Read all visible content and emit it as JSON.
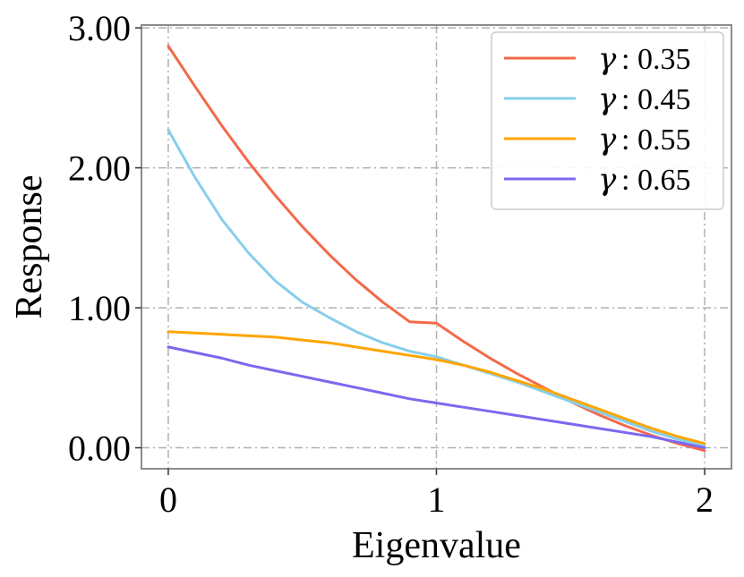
{
  "chart_data": {
    "type": "line",
    "xlabel": "Eigenvalue",
    "ylabel": "Response",
    "xlim": [
      -0.1,
      2.1
    ],
    "ylim": [
      -0.15,
      3.02
    ],
    "xticks": [
      0,
      1,
      2
    ],
    "xtick_labels": [
      "0",
      "1",
      "2"
    ],
    "yticks": [
      0,
      1,
      2,
      3
    ],
    "ytick_labels": [
      "0.00",
      "1.00",
      "2.00",
      "3.00"
    ],
    "grid": true,
    "legend_position": "top-right",
    "x": [
      0,
      0.1,
      0.2,
      0.3,
      0.4,
      0.5,
      0.6,
      0.7,
      0.8,
      0.9,
      1.0,
      1.1,
      1.2,
      1.3,
      1.4,
      1.5,
      1.6,
      1.7,
      1.8,
      1.9,
      2.0
    ],
    "series": [
      {
        "name": "γ : 0.35",
        "gamma_symbol": "γ",
        "label_value": ": 0.35",
        "color": "#f4694a",
        "values": [
          2.87,
          2.58,
          2.3,
          2.04,
          1.8,
          1.58,
          1.38,
          1.2,
          1.04,
          0.9,
          0.89,
          0.76,
          0.64,
          0.53,
          0.43,
          0.33,
          0.24,
          0.16,
          0.09,
          0.03,
          -0.02
        ]
      },
      {
        "name": "γ : 0.45",
        "gamma_symbol": "γ",
        "label_value": ": 0.45",
        "color": "#87ceeb",
        "values": [
          2.27,
          1.93,
          1.63,
          1.39,
          1.19,
          1.04,
          0.93,
          0.83,
          0.75,
          0.69,
          0.65,
          0.59,
          0.53,
          0.47,
          0.4,
          0.33,
          0.26,
          0.19,
          0.12,
          0.06,
          0.02
        ]
      },
      {
        "name": "γ : 0.55",
        "gamma_symbol": "γ",
        "label_value": ": 0.55",
        "color": "#ffa500",
        "values": [
          0.83,
          0.82,
          0.81,
          0.8,
          0.79,
          0.77,
          0.75,
          0.72,
          0.69,
          0.66,
          0.63,
          0.59,
          0.54,
          0.48,
          0.42,
          0.35,
          0.28,
          0.21,
          0.14,
          0.08,
          0.03
        ]
      },
      {
        "name": "γ : 0.65",
        "gamma_symbol": "γ",
        "label_value": ": 0.65",
        "color": "#7b68ee",
        "values": [
          0.72,
          0.68,
          0.64,
          0.59,
          0.55,
          0.51,
          0.47,
          0.43,
          0.39,
          0.35,
          0.32,
          0.29,
          0.26,
          0.23,
          0.2,
          0.17,
          0.14,
          0.11,
          0.08,
          0.04,
          0.0
        ]
      }
    ]
  }
}
